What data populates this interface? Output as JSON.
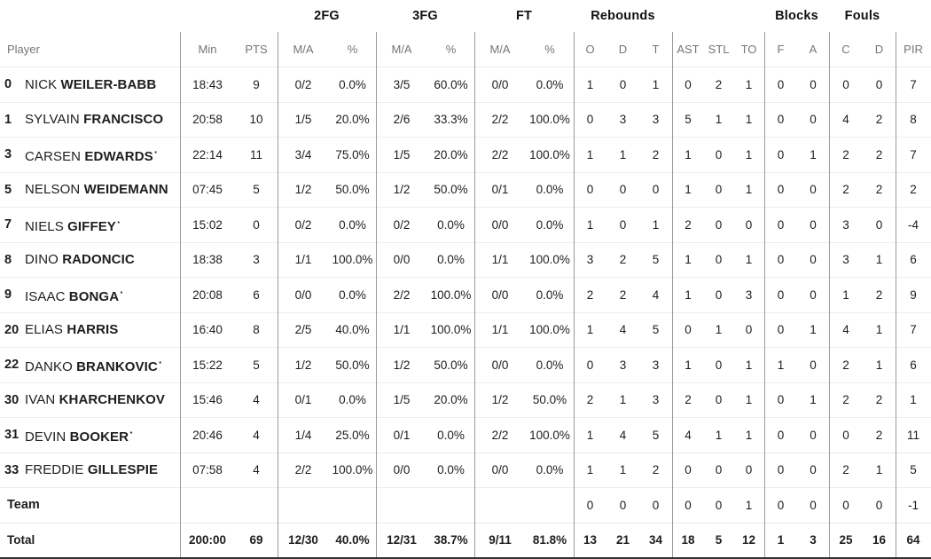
{
  "colors": {
    "divider_vertical": "#9b9b9b",
    "divider_horizontal": "#ececec",
    "header_muted": "#757575",
    "text_primary": "#1d1d1d"
  },
  "table": {
    "starter_marker": "·",
    "header": {
      "player": "Player",
      "min": "Min",
      "pts": "PTS",
      "groups": {
        "fg2": "2FG",
        "fg3": "3FG",
        "ft": "FT",
        "rebounds": "Rebounds",
        "blocks": "Blocks",
        "fouls": "Fouls"
      },
      "ma": "M/A",
      "pct": "%",
      "o": "O",
      "d": "D",
      "t": "T",
      "ast": "AST",
      "stl": "STL",
      "to": "TO",
      "f": "F",
      "a": "A",
      "c": "C",
      "fd": "D",
      "pir": "PIR"
    },
    "players": [
      {
        "num": "0",
        "first": "NICK",
        "last": "WEILER-BABB",
        "starter": false,
        "min": "18:43",
        "pts": "9",
        "p2ma": "0/2",
        "p2pct": "0.0%",
        "p3ma": "3/5",
        "p3pct": "60.0%",
        "ftma": "0/0",
        "ftpct": "0.0%",
        "ro": "1",
        "rd": "0",
        "rt": "1",
        "ast": "0",
        "stl": "2",
        "to": "1",
        "bf": "0",
        "ba": "0",
        "fc": "0",
        "fd": "0",
        "pir": "7"
      },
      {
        "num": "1",
        "first": "SYLVAIN",
        "last": "FRANCISCO",
        "starter": false,
        "min": "20:58",
        "pts": "10",
        "p2ma": "1/5",
        "p2pct": "20.0%",
        "p3ma": "2/6",
        "p3pct": "33.3%",
        "ftma": "2/2",
        "ftpct": "100.0%",
        "ro": "0",
        "rd": "3",
        "rt": "3",
        "ast": "5",
        "stl": "1",
        "to": "1",
        "bf": "0",
        "ba": "0",
        "fc": "4",
        "fd": "2",
        "pir": "8"
      },
      {
        "num": "3",
        "first": "CARSEN",
        "last": "EDWARDS",
        "starter": true,
        "min": "22:14",
        "pts": "11",
        "p2ma": "3/4",
        "p2pct": "75.0%",
        "p3ma": "1/5",
        "p3pct": "20.0%",
        "ftma": "2/2",
        "ftpct": "100.0%",
        "ro": "1",
        "rd": "1",
        "rt": "2",
        "ast": "1",
        "stl": "0",
        "to": "1",
        "bf": "0",
        "ba": "1",
        "fc": "2",
        "fd": "2",
        "pir": "7"
      },
      {
        "num": "5",
        "first": "NELSON",
        "last": "WEIDEMANN",
        "starter": false,
        "min": "07:45",
        "pts": "5",
        "p2ma": "1/2",
        "p2pct": "50.0%",
        "p3ma": "1/2",
        "p3pct": "50.0%",
        "ftma": "0/1",
        "ftpct": "0.0%",
        "ro": "0",
        "rd": "0",
        "rt": "0",
        "ast": "1",
        "stl": "0",
        "to": "1",
        "bf": "0",
        "ba": "0",
        "fc": "2",
        "fd": "2",
        "pir": "2"
      },
      {
        "num": "7",
        "first": "NIELS",
        "last": "GIFFEY",
        "starter": true,
        "min": "15:02",
        "pts": "0",
        "p2ma": "0/2",
        "p2pct": "0.0%",
        "p3ma": "0/2",
        "p3pct": "0.0%",
        "ftma": "0/0",
        "ftpct": "0.0%",
        "ro": "1",
        "rd": "0",
        "rt": "1",
        "ast": "2",
        "stl": "0",
        "to": "0",
        "bf": "0",
        "ba": "0",
        "fc": "3",
        "fd": "0",
        "pir": "-4"
      },
      {
        "num": "8",
        "first": "DINO",
        "last": "RADONCIC",
        "starter": false,
        "min": "18:38",
        "pts": "3",
        "p2ma": "1/1",
        "p2pct": "100.0%",
        "p3ma": "0/0",
        "p3pct": "0.0%",
        "ftma": "1/1",
        "ftpct": "100.0%",
        "ro": "3",
        "rd": "2",
        "rt": "5",
        "ast": "1",
        "stl": "0",
        "to": "1",
        "bf": "0",
        "ba": "0",
        "fc": "3",
        "fd": "1",
        "pir": "6"
      },
      {
        "num": "9",
        "first": "ISAAC",
        "last": "BONGA",
        "starter": true,
        "min": "20:08",
        "pts": "6",
        "p2ma": "0/0",
        "p2pct": "0.0%",
        "p3ma": "2/2",
        "p3pct": "100.0%",
        "ftma": "0/0",
        "ftpct": "0.0%",
        "ro": "2",
        "rd": "2",
        "rt": "4",
        "ast": "1",
        "stl": "0",
        "to": "3",
        "bf": "0",
        "ba": "0",
        "fc": "1",
        "fd": "2",
        "pir": "9"
      },
      {
        "num": "20",
        "first": "ELIAS",
        "last": "HARRIS",
        "starter": false,
        "min": "16:40",
        "pts": "8",
        "p2ma": "2/5",
        "p2pct": "40.0%",
        "p3ma": "1/1",
        "p3pct": "100.0%",
        "ftma": "1/1",
        "ftpct": "100.0%",
        "ro": "1",
        "rd": "4",
        "rt": "5",
        "ast": "0",
        "stl": "1",
        "to": "0",
        "bf": "0",
        "ba": "1",
        "fc": "4",
        "fd": "1",
        "pir": "7"
      },
      {
        "num": "22",
        "first": "DANKO",
        "last": "BRANKOVIC",
        "starter": true,
        "min": "15:22",
        "pts": "5",
        "p2ma": "1/2",
        "p2pct": "50.0%",
        "p3ma": "1/2",
        "p3pct": "50.0%",
        "ftma": "0/0",
        "ftpct": "0.0%",
        "ro": "0",
        "rd": "3",
        "rt": "3",
        "ast": "1",
        "stl": "0",
        "to": "1",
        "bf": "1",
        "ba": "0",
        "fc": "2",
        "fd": "1",
        "pir": "6"
      },
      {
        "num": "30",
        "first": "IVAN",
        "last": "KHARCHENKOV",
        "starter": false,
        "min": "15:46",
        "pts": "4",
        "p2ma": "0/1",
        "p2pct": "0.0%",
        "p3ma": "1/5",
        "p3pct": "20.0%",
        "ftma": "1/2",
        "ftpct": "50.0%",
        "ro": "2",
        "rd": "1",
        "rt": "3",
        "ast": "2",
        "stl": "0",
        "to": "1",
        "bf": "0",
        "ba": "1",
        "fc": "2",
        "fd": "2",
        "pir": "1"
      },
      {
        "num": "31",
        "first": "DEVIN",
        "last": "BOOKER",
        "starter": true,
        "min": "20:46",
        "pts": "4",
        "p2ma": "1/4",
        "p2pct": "25.0%",
        "p3ma": "0/1",
        "p3pct": "0.0%",
        "ftma": "2/2",
        "ftpct": "100.0%",
        "ro": "1",
        "rd": "4",
        "rt": "5",
        "ast": "4",
        "stl": "1",
        "to": "1",
        "bf": "0",
        "ba": "0",
        "fc": "0",
        "fd": "2",
        "pir": "11"
      },
      {
        "num": "33",
        "first": "FREDDIE",
        "last": "GILLESPIE",
        "starter": false,
        "min": "07:58",
        "pts": "4",
        "p2ma": "2/2",
        "p2pct": "100.0%",
        "p3ma": "0/0",
        "p3pct": "0.0%",
        "ftma": "0/0",
        "ftpct": "0.0%",
        "ro": "1",
        "rd": "1",
        "rt": "2",
        "ast": "0",
        "stl": "0",
        "to": "0",
        "bf": "0",
        "ba": "0",
        "fc": "2",
        "fd": "1",
        "pir": "5"
      }
    ],
    "team_row": {
      "label": "Team",
      "ro": "0",
      "rd": "0",
      "rt": "0",
      "ast": "0",
      "stl": "0",
      "to": "1",
      "bf": "0",
      "ba": "0",
      "fc": "0",
      "fd": "0",
      "pir": "-1"
    },
    "total_row": {
      "label": "Total",
      "min": "200:00",
      "pts": "69",
      "p2ma": "12/30",
      "p2pct": "40.0%",
      "p3ma": "12/31",
      "p3pct": "38.7%",
      "ftma": "9/11",
      "ftpct": "81.8%",
      "ro": "13",
      "rd": "21",
      "rt": "34",
      "ast": "18",
      "stl": "5",
      "to": "12",
      "bf": "1",
      "ba": "3",
      "fc": "25",
      "fd": "16",
      "pir": "64"
    }
  }
}
